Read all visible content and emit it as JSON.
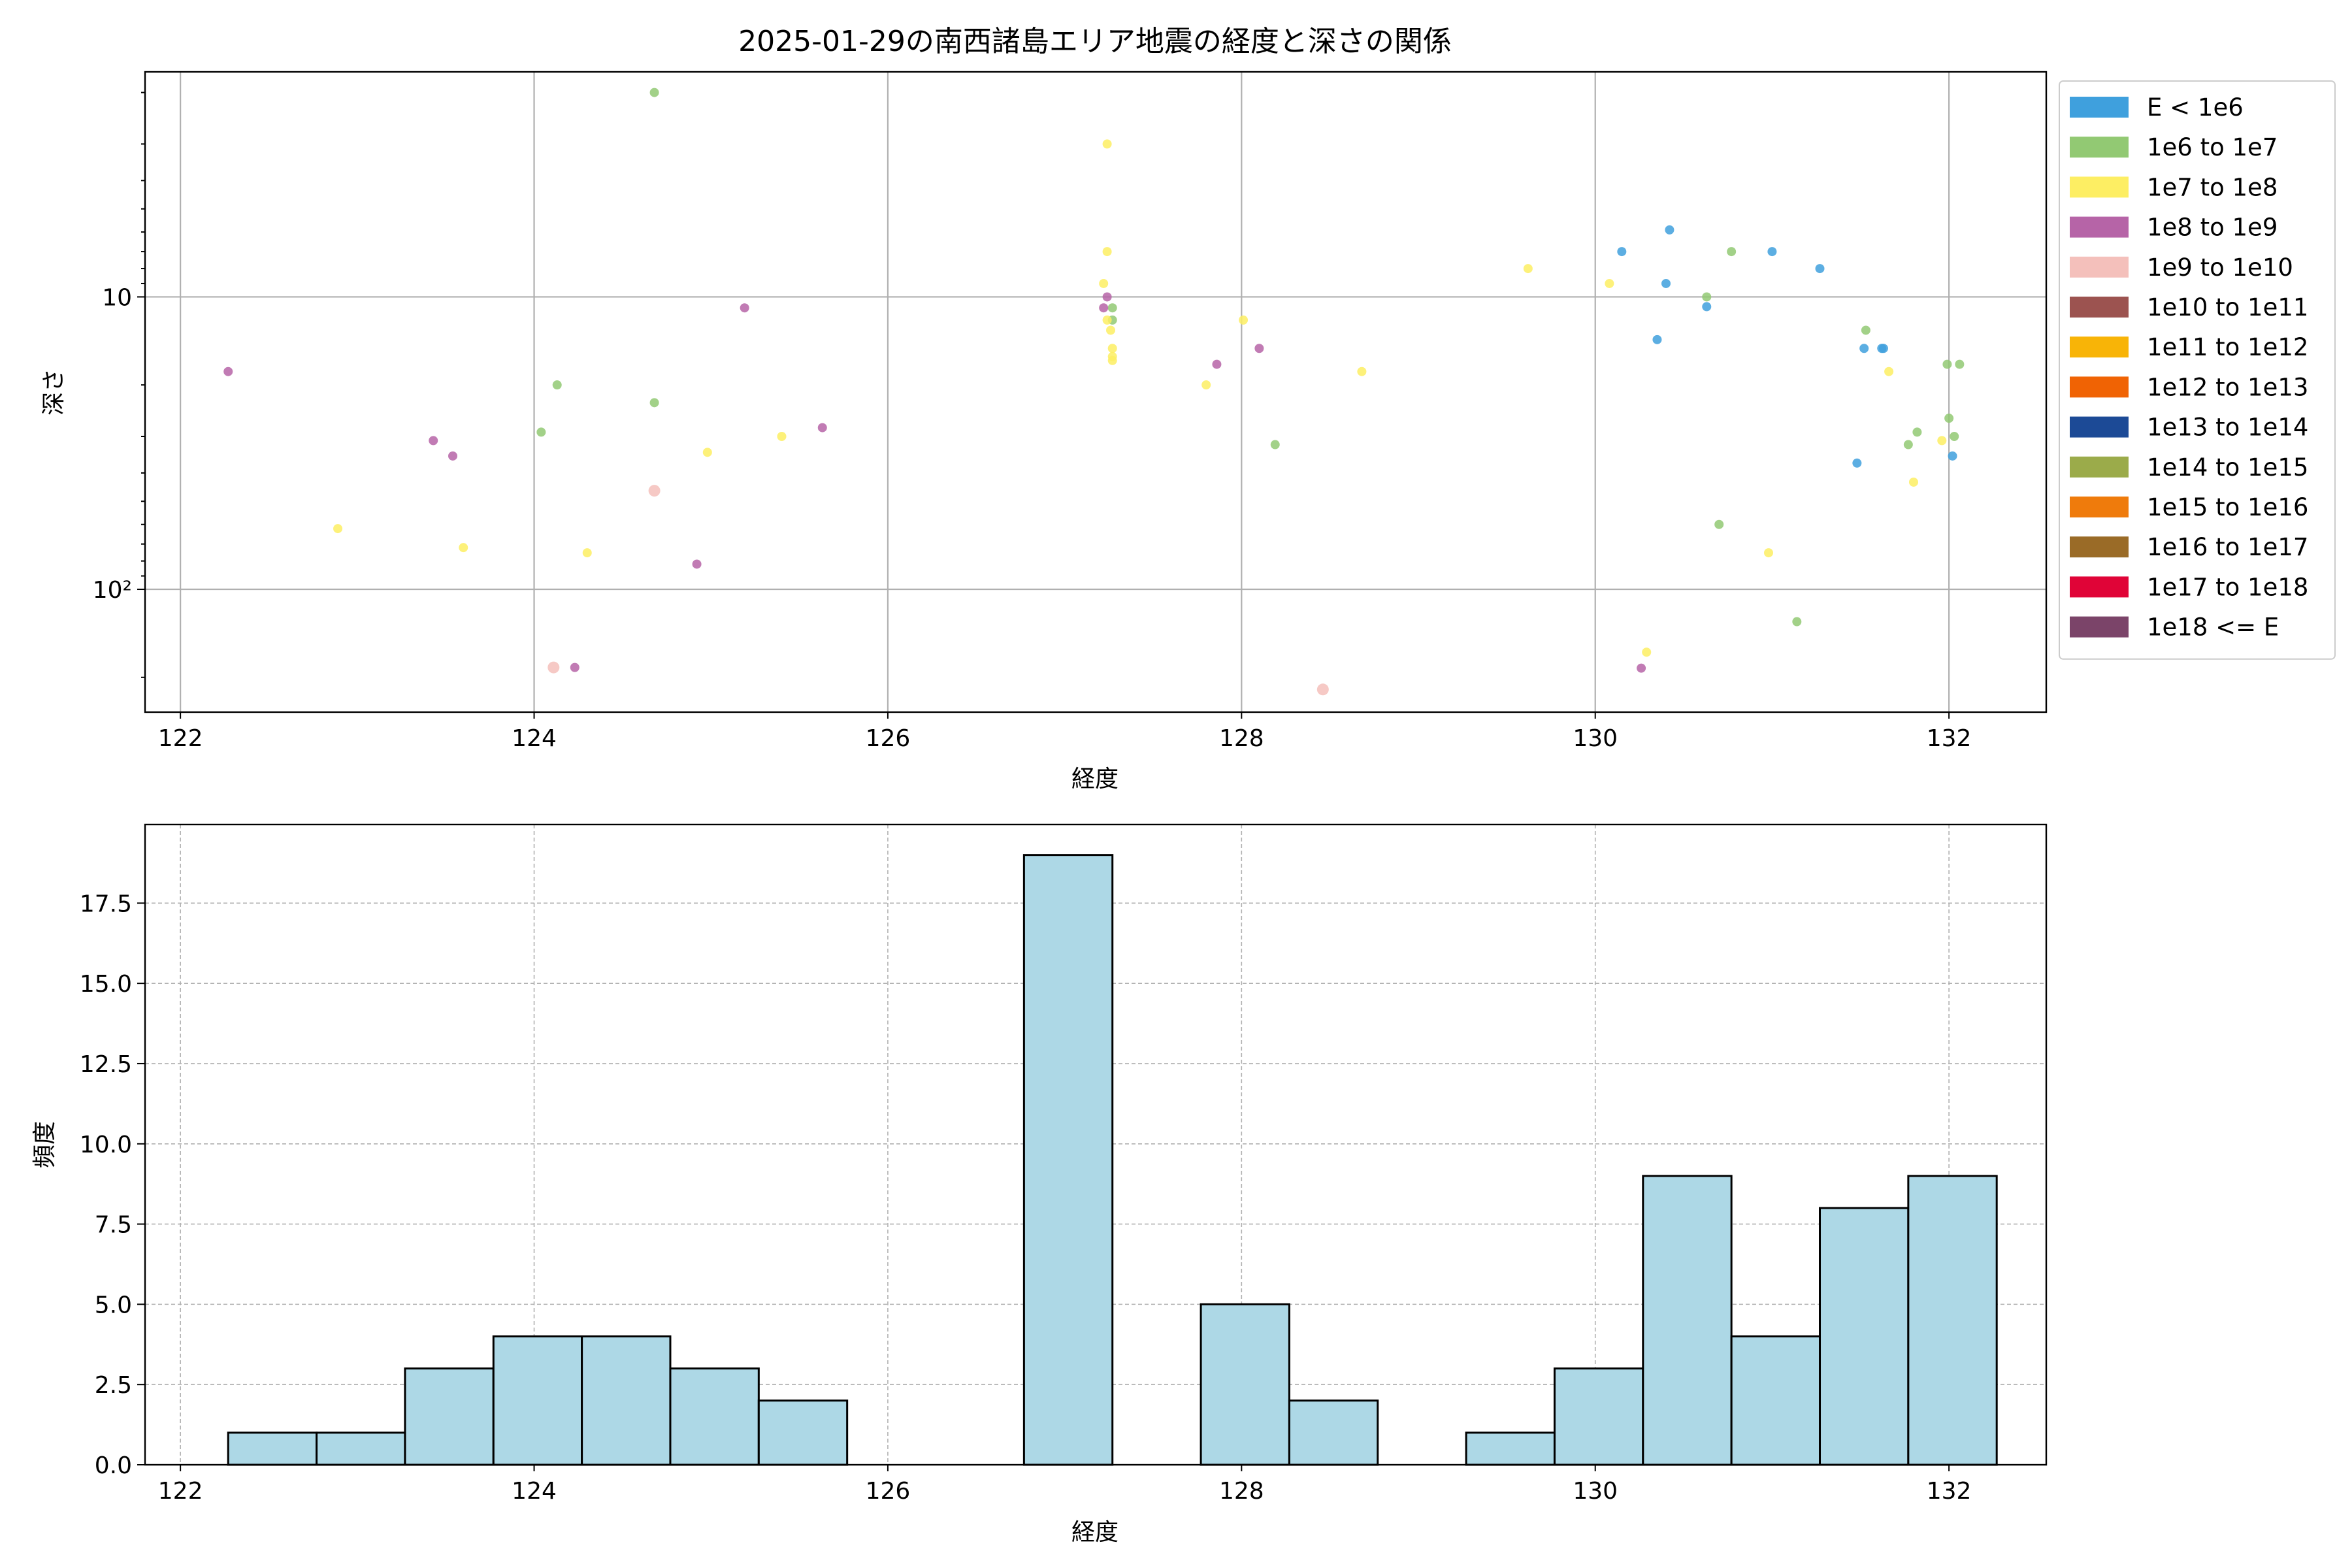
{
  "chart_data": [
    {
      "type": "scatter",
      "title": "2025-01-29の南西諸島エリア地震の経度と深さの関係",
      "xlabel": "経度",
      "ylabel": "深さ",
      "x_ticks": [
        "122",
        "124",
        "126",
        "128",
        "130",
        "132"
      ],
      "y_ticks": [
        "10",
        "10²"
      ],
      "xlim": [
        121.8,
        132.55
      ],
      "ylim": [
        263,
        1.7
      ],
      "y_scale": "log",
      "y_inverted": true,
      "grid": true,
      "legend": {
        "placement": "outside-right",
        "entries": [
          {
            "label": "E < 1e6",
            "color": "#3fa0dd"
          },
          {
            "label": "1e6 to 1e7",
            "color": "#92c973"
          },
          {
            "label": "1e7 to 1e8",
            "color": "#fdee63"
          },
          {
            "label": "1e8 to 1e9",
            "color": "#b664a7"
          },
          {
            "label": "1e9 to 1e10",
            "color": "#f4c0bb"
          },
          {
            "label": "1e10 to 1e11",
            "color": "#9c5350"
          },
          {
            "label": "1e11 to 1e12",
            "color": "#f8b407"
          },
          {
            "label": "1e12 to 1e13",
            "color": "#f06304"
          },
          {
            "label": "1e13 to 1e14",
            "color": "#1c4a96"
          },
          {
            "label": "1e14 to 1e15",
            "color": "#9bab4a"
          },
          {
            "label": "1e15 to 1e16",
            "color": "#ef7b0c"
          },
          {
            "label": "1e16 to 1e17",
            "color": "#9a6b27"
          },
          {
            "label": "1e17 to 1e18",
            "color": "#e00437"
          },
          {
            "label": "1e18 <= E",
            "color": "#7b4469"
          }
        ]
      },
      "series": [
        {
          "class": 0,
          "points": [
            [
              130.15,
              7.0
            ],
            [
              130.42,
              5.9
            ],
            [
              130.4,
              9.0
            ],
            [
              130.35,
              14.0
            ],
            [
              130.63,
              10.8
            ],
            [
              131.0,
              7.0
            ],
            [
              131.27,
              8.0
            ],
            [
              131.48,
              37.0
            ],
            [
              131.52,
              15.0
            ],
            [
              131.62,
              15.0
            ],
            [
              131.63,
              15.0
            ],
            [
              132.02,
              35.0
            ]
          ]
        },
        {
          "class": 1,
          "points": [
            [
              124.68,
              2.0
            ],
            [
              124.04,
              29.0
            ],
            [
              124.13,
              20.0
            ],
            [
              124.68,
              23.0
            ],
            [
              127.27,
              10.9
            ],
            [
              127.27,
              12.0
            ],
            [
              128.19,
              32.0
            ],
            [
              130.63,
              10.0
            ],
            [
              130.77,
              7.0
            ],
            [
              131.53,
              13.0
            ],
            [
              131.77,
              32.0
            ],
            [
              131.82,
              29.0
            ],
            [
              131.99,
              17.0
            ],
            [
              132.06,
              17.0
            ],
            [
              132.0,
              26.0
            ],
            [
              132.03,
              30.0
            ],
            [
              130.7,
              60.0
            ],
            [
              131.14,
              129.0
            ]
          ]
        },
        {
          "class": 2,
          "points": [
            [
              122.89,
              62.0
            ],
            [
              123.6,
              72.0
            ],
            [
              124.3,
              75.0
            ],
            [
              124.98,
              34.0
            ],
            [
              125.4,
              30.0
            ],
            [
              127.24,
              3.0
            ],
            [
              127.24,
              7.0
            ],
            [
              127.22,
              9.0
            ],
            [
              127.24,
              12.0
            ],
            [
              127.26,
              13.0
            ],
            [
              127.27,
              15.0
            ],
            [
              127.27,
              16.0
            ],
            [
              127.27,
              16.5
            ],
            [
              127.8,
              20.0
            ],
            [
              128.01,
              12.0
            ],
            [
              128.68,
              18.0
            ],
            [
              129.62,
              8.0
            ],
            [
              130.08,
              9.0
            ],
            [
              131.66,
              18.0
            ],
            [
              131.96,
              31.0
            ],
            [
              131.8,
              43.0
            ],
            [
              130.98,
              75.0
            ],
            [
              130.29,
              164.0
            ]
          ]
        },
        {
          "class": 3,
          "points": [
            [
              122.27,
              18.0
            ],
            [
              123.43,
              31.0
            ],
            [
              123.54,
              35.0
            ],
            [
              124.92,
              82.0
            ],
            [
              125.19,
              10.9
            ],
            [
              125.63,
              28.0
            ],
            [
              127.24,
              10.0
            ],
            [
              127.22,
              10.9
            ],
            [
              127.86,
              17.0
            ],
            [
              128.1,
              15.0
            ],
            [
              124.23,
              185.0
            ],
            [
              130.26,
              186.0
            ]
          ]
        },
        {
          "class": 4,
          "points": [
            [
              124.68,
              46.0
            ],
            [
              124.11,
              185.0
            ],
            [
              128.46,
              220.0
            ]
          ]
        }
      ]
    },
    {
      "type": "bar",
      "title": "",
      "xlabel": "経度",
      "ylabel": "頻度",
      "x_ticks": [
        "122",
        "124",
        "126",
        "128",
        "130",
        "132"
      ],
      "y_ticks": [
        "0.0",
        "2.5",
        "5.0",
        "7.5",
        "10.0",
        "12.5",
        "15.0",
        "17.5"
      ],
      "xlim": [
        121.8,
        132.55
      ],
      "ylim": [
        0,
        19.95
      ],
      "grid": true,
      "bar_color": "#add8e6",
      "bin_edges": [
        122.27,
        122.77,
        123.27,
        123.77,
        124.27,
        124.77,
        125.27,
        125.77,
        126.27,
        126.77,
        127.27,
        127.77,
        128.27,
        128.77,
        129.27,
        129.77,
        130.27,
        130.77,
        131.27,
        131.77,
        132.27
      ],
      "values": [
        1,
        1,
        3,
        4,
        4,
        3,
        2,
        0,
        0,
        19,
        0,
        5,
        2,
        0,
        1,
        3,
        9,
        4,
        8,
        9
      ]
    }
  ]
}
